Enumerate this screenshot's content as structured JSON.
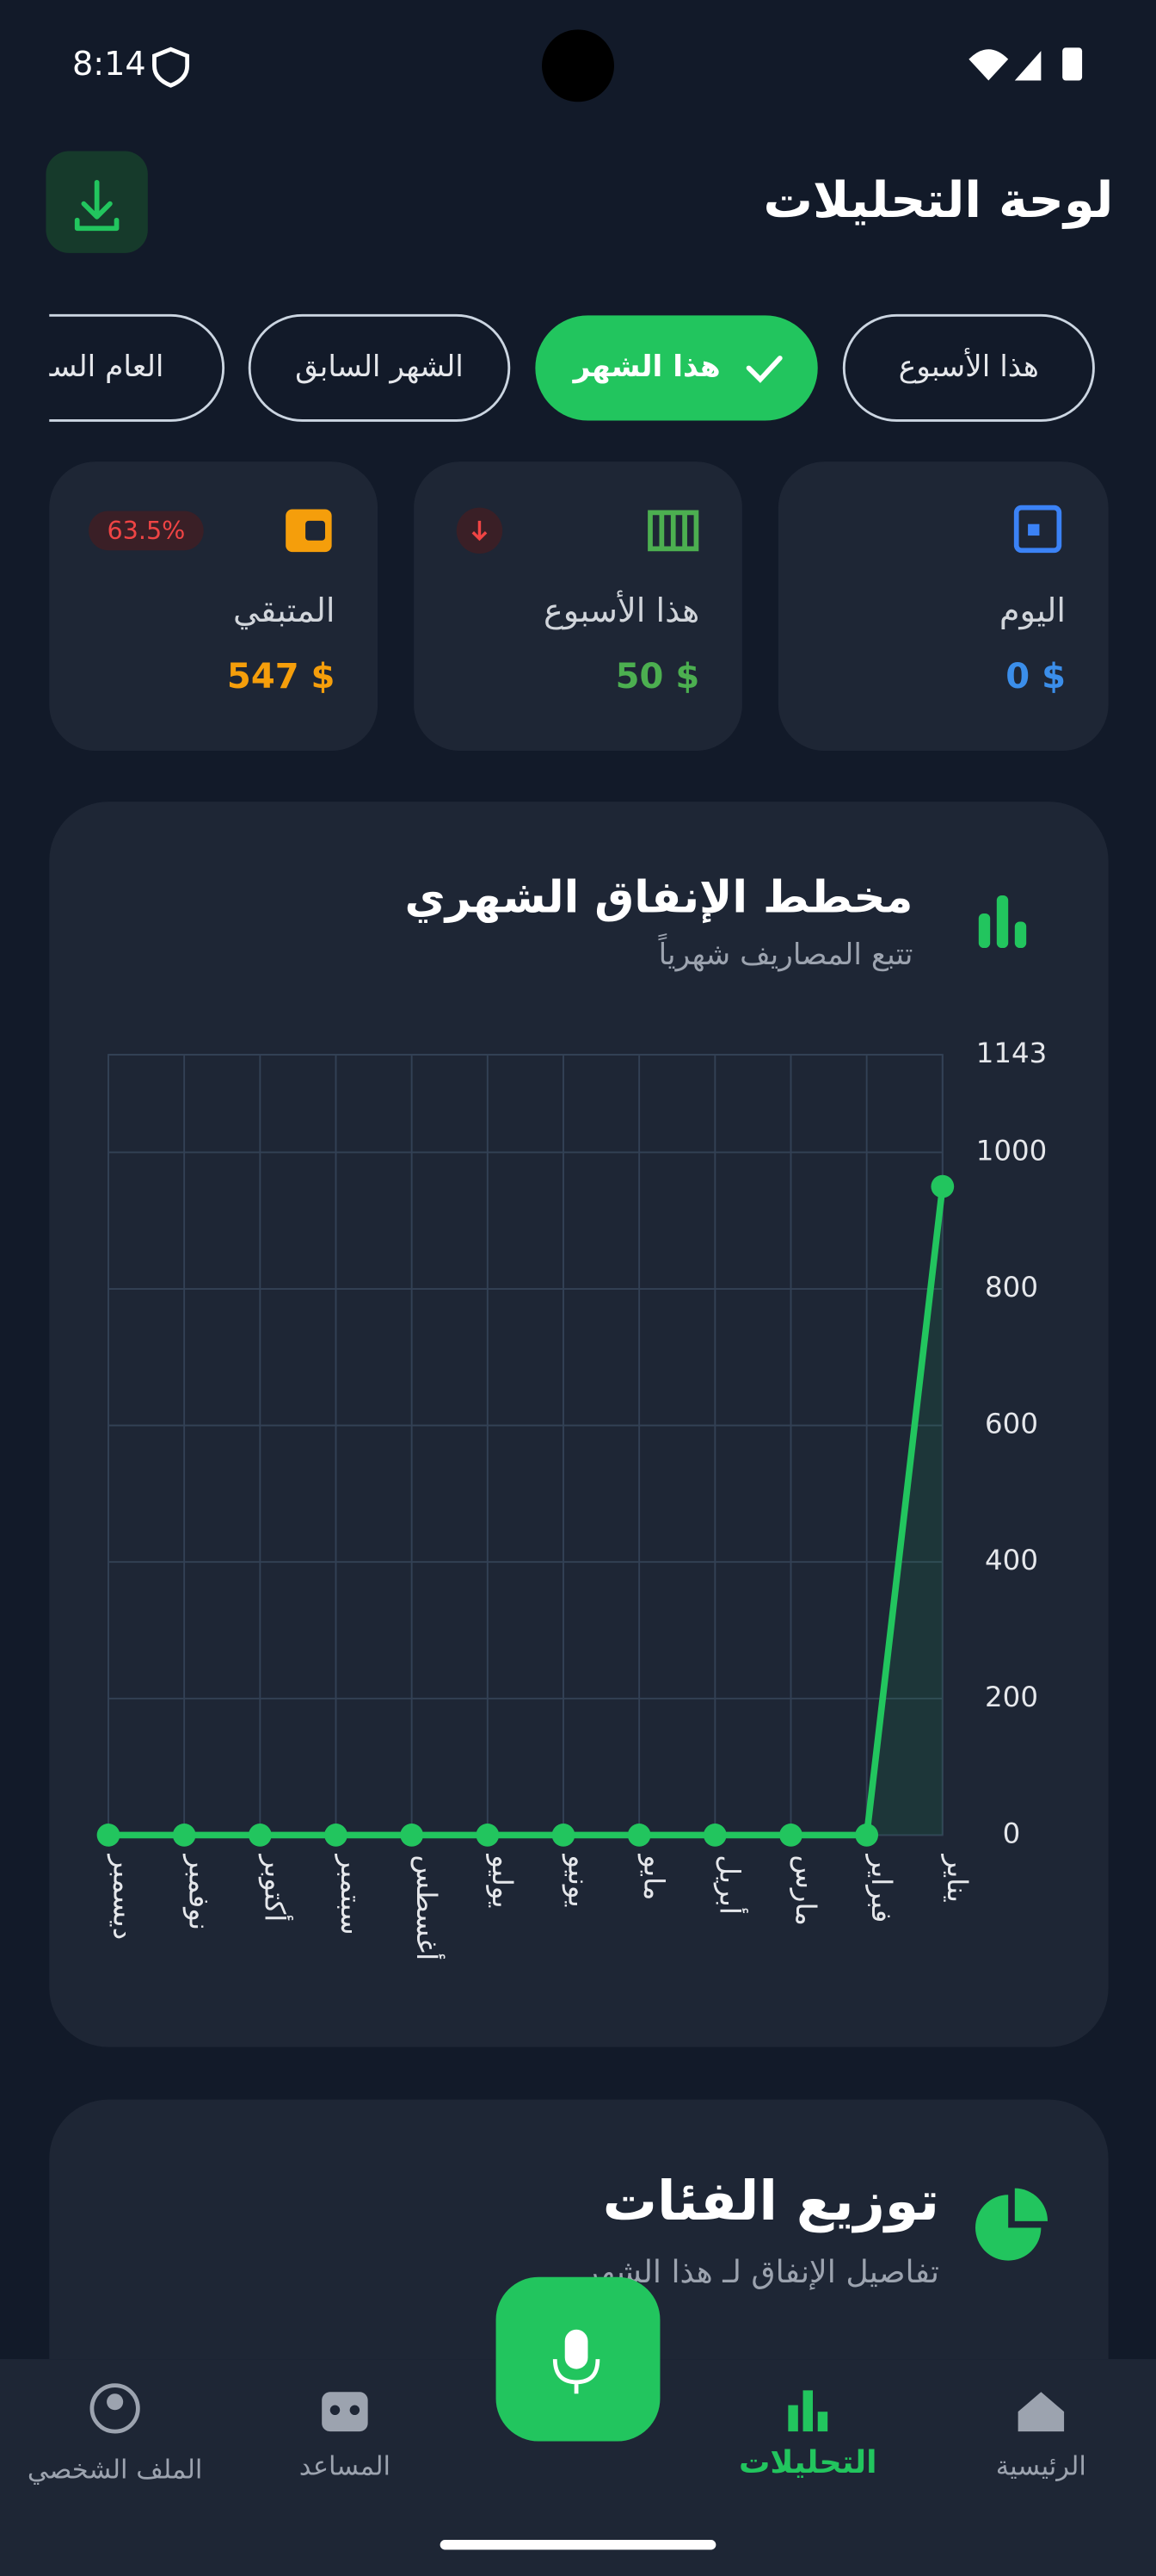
{
  "status_bar": {
    "time": "8:14"
  },
  "header": {
    "title": "لوحة التحليلات"
  },
  "filters": [
    "هذا الأسبوع",
    "هذا الشهر",
    "الشهر السابق",
    "العام السابق"
  ],
  "stats": [
    {
      "label": "اليوم",
      "value": "0 $"
    },
    {
      "label": "هذا الأسبوع",
      "value": "50 $"
    },
    {
      "label": "المتبقي",
      "value": "547 $",
      "badge": "63.5%"
    }
  ],
  "chart_data": {
    "type": "line",
    "title": "مخطط الإنفاق الشهري",
    "subtitle": "تتبع المصاريف شهرياً",
    "categories": [
      "يناير",
      "فبراير",
      "مارس",
      "أبريل",
      "مايو",
      "يونيو",
      "يوليو",
      "أغسطس",
      "سبتمبر",
      "أكتوبر",
      "نوفمبر",
      "ديسمبر"
    ],
    "values": [
      950,
      0,
      0,
      0,
      0,
      0,
      0,
      0,
      0,
      0,
      0,
      0
    ],
    "color": "#22c55e",
    "x_reversed": true,
    "ylim": [
      0,
      1143
    ],
    "yticks": [
      0,
      200,
      400,
      600,
      800,
      1000,
      1143
    ],
    "grid": true
  },
  "categories_card": {
    "title": "توزيع الفئات",
    "subtitle": "تفاصيل الإنفاق لـ هذا الشهر"
  },
  "nav": [
    "الرئيسية",
    "التحليلات",
    "المساعد",
    "الملف الشخصي"
  ]
}
